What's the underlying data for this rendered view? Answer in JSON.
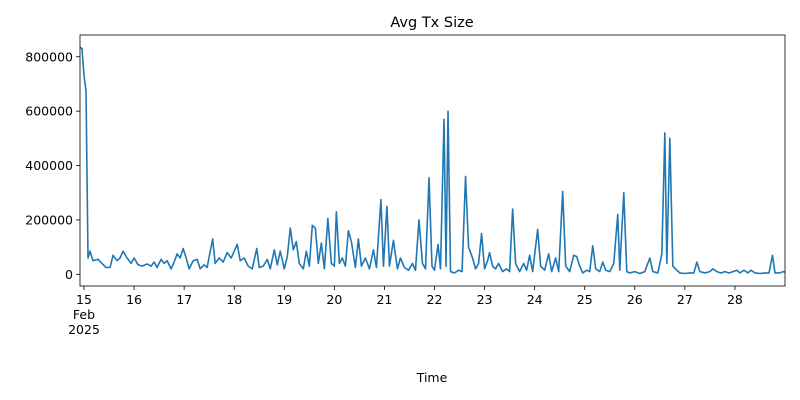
{
  "chart_data": {
    "type": "line",
    "title": "Avg Tx Size",
    "x_label": "Time",
    "x": [
      14.92,
      14.96,
      15.0,
      15.04,
      15.08,
      15.12,
      15.18,
      15.28,
      15.36,
      15.44,
      15.52,
      15.58,
      15.66,
      15.72,
      15.78,
      15.86,
      15.94,
      16.0,
      16.08,
      16.16,
      16.26,
      16.34,
      16.4,
      16.46,
      16.54,
      16.6,
      16.66,
      16.74,
      16.8,
      16.86,
      16.92,
      16.98,
      17.04,
      17.1,
      17.18,
      17.26,
      17.32,
      17.4,
      17.46,
      17.5,
      17.57,
      17.62,
      17.7,
      17.78,
      17.86,
      17.94,
      18.0,
      18.06,
      18.12,
      18.2,
      18.28,
      18.36,
      18.45,
      18.5,
      18.58,
      18.66,
      18.72,
      18.8,
      18.86,
      18.92,
      19.0,
      19.06,
      19.12,
      19.18,
      19.24,
      19.3,
      19.38,
      19.44,
      19.5,
      19.56,
      19.62,
      19.68,
      19.74,
      19.8,
      19.87,
      19.94,
      20.0,
      20.04,
      20.1,
      20.16,
      20.22,
      20.28,
      20.34,
      20.42,
      20.48,
      20.54,
      20.62,
      20.7,
      20.78,
      20.84,
      20.93,
      20.98,
      21.05,
      21.1,
      21.18,
      21.26,
      21.32,
      21.4,
      21.48,
      21.56,
      21.62,
      21.69,
      21.76,
      21.82,
      21.89,
      21.95,
      22.0,
      22.07,
      22.12,
      22.19,
      22.23,
      22.27,
      22.32,
      22.4,
      22.48,
      22.55,
      22.62,
      22.68,
      22.76,
      22.82,
      22.88,
      22.94,
      23.0,
      23.06,
      23.1,
      23.16,
      23.22,
      23.28,
      23.36,
      23.44,
      23.5,
      23.56,
      23.62,
      23.7,
      23.78,
      23.84,
      23.9,
      23.96,
      24.06,
      24.12,
      24.2,
      24.28,
      24.34,
      24.42,
      24.48,
      24.56,
      24.62,
      24.7,
      24.78,
      24.84,
      24.9,
      24.96,
      25.04,
      25.1,
      25.16,
      25.22,
      25.3,
      25.36,
      25.42,
      25.5,
      25.58,
      25.66,
      25.7,
      25.78,
      25.84,
      25.9,
      26.0,
      26.1,
      26.2,
      26.3,
      26.36,
      26.46,
      26.54,
      26.6,
      26.64,
      26.7,
      26.76,
      26.84,
      26.9,
      27.0,
      27.1,
      27.18,
      27.24,
      27.3,
      27.4,
      27.5,
      27.56,
      27.64,
      27.72,
      27.8,
      27.88,
      27.96,
      28.04,
      28.1,
      28.18,
      28.26,
      28.32,
      28.4,
      28.5,
      28.6,
      28.68,
      28.75,
      28.8,
      28.9,
      28.96,
      29.0
    ],
    "series": [
      {
        "name": "Avg Tx Size",
        "color": "#1f77b4",
        "values": [
          835000,
          830000,
          730000,
          675000,
          60000,
          85000,
          50000,
          55000,
          40000,
          25000,
          25000,
          70000,
          50000,
          60000,
          85000,
          60000,
          40000,
          60000,
          35000,
          30000,
          38000,
          30000,
          45000,
          25000,
          55000,
          40000,
          50000,
          20000,
          45000,
          75000,
          60000,
          95000,
          60000,
          20000,
          50000,
          55000,
          20000,
          35000,
          25000,
          65000,
          130000,
          40000,
          60000,
          45000,
          80000,
          60000,
          85000,
          110000,
          50000,
          60000,
          30000,
          20000,
          95000,
          25000,
          30000,
          55000,
          20000,
          90000,
          35000,
          85000,
          20000,
          65000,
          170000,
          90000,
          120000,
          40000,
          20000,
          85000,
          30000,
          180000,
          170000,
          40000,
          115000,
          20000,
          205000,
          40000,
          30000,
          230000,
          40000,
          60000,
          30000,
          160000,
          120000,
          25000,
          130000,
          30000,
          60000,
          20000,
          90000,
          25000,
          275000,
          30000,
          250000,
          30000,
          125000,
          20000,
          60000,
          25000,
          15000,
          40000,
          15000,
          200000,
          40000,
          20000,
          355000,
          30000,
          15000,
          110000,
          20000,
          570000,
          30000,
          600000,
          10000,
          5000,
          15000,
          10000,
          360000,
          100000,
          60000,
          20000,
          40000,
          150000,
          20000,
          50000,
          80000,
          30000,
          20000,
          40000,
          10000,
          20000,
          10000,
          240000,
          40000,
          10000,
          40000,
          15000,
          70000,
          10000,
          165000,
          30000,
          15000,
          75000,
          10000,
          60000,
          10000,
          305000,
          30000,
          10000,
          70000,
          65000,
          30000,
          5000,
          15000,
          10000,
          105000,
          20000,
          10000,
          45000,
          15000,
          10000,
          40000,
          220000,
          15000,
          300000,
          10000,
          5000,
          10000,
          3000,
          10000,
          60000,
          10000,
          5000,
          75000,
          520000,
          40000,
          500000,
          30000,
          15000,
          5000,
          3000,
          5000,
          5000,
          45000,
          10000,
          5000,
          10000,
          20000,
          10000,
          5000,
          10000,
          5000,
          10000,
          15000,
          5000,
          15000,
          5000,
          15000,
          5000,
          3000,
          5000,
          5000,
          70000,
          5000,
          5000,
          10000,
          8000
        ]
      }
    ],
    "xlim": [
      14.92,
      29.0
    ],
    "xticks": [
      {
        "value": 15,
        "label": "15\nFeb\n2025"
      },
      16,
      17,
      18,
      19,
      20,
      21,
      22,
      23,
      24,
      25,
      26,
      27,
      28
    ],
    "ylim": [
      -43000,
      880000
    ],
    "yticks": [
      0,
      200000,
      400000,
      600000,
      800000
    ],
    "grid": false
  }
}
